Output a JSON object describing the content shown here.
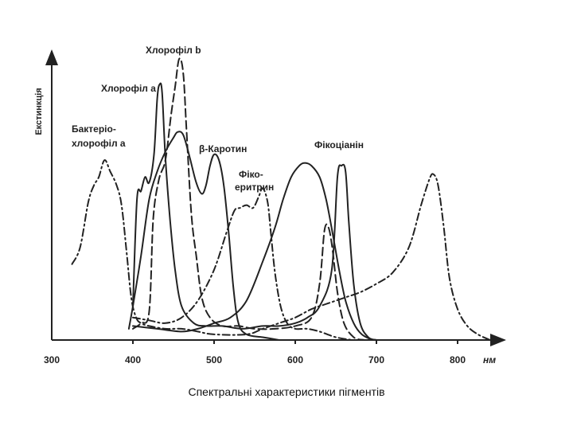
{
  "caption": "Спектральні характеристики пігментів",
  "chart_data": {
    "type": "line",
    "ylabel": "Екстинкція",
    "x_unit": "нм",
    "xlim": [
      300,
      850
    ],
    "ylim": [
      0,
      100
    ],
    "x_ticks": [
      300,
      400,
      500,
      600,
      700,
      800
    ],
    "grid": false,
    "legend": "none",
    "series": [
      {
        "name": "Бактеріохлорофіл a",
        "style": "dashdot",
        "points": [
          [
            325,
            27
          ],
          [
            335,
            33
          ],
          [
            345,
            49
          ],
          [
            352,
            55
          ],
          [
            358,
            58
          ],
          [
            365,
            64
          ],
          [
            372,
            60
          ],
          [
            380,
            55
          ],
          [
            386,
            48
          ],
          [
            392,
            32
          ],
          [
            398,
            15
          ],
          [
            404,
            8
          ],
          [
            410,
            6
          ],
          [
            420,
            5
          ],
          [
            440,
            4
          ],
          [
            460,
            4
          ],
          [
            480,
            3
          ],
          [
            500,
            2
          ],
          [
            540,
            2
          ],
          [
            560,
            4
          ],
          [
            580,
            6
          ],
          [
            600,
            8
          ],
          [
            620,
            11
          ],
          [
            640,
            13
          ],
          [
            660,
            15
          ],
          [
            680,
            17
          ],
          [
            700,
            20
          ],
          [
            720,
            24
          ],
          [
            740,
            33
          ],
          [
            755,
            48
          ],
          [
            765,
            57
          ],
          [
            770,
            59
          ],
          [
            776,
            55
          ],
          [
            783,
            40
          ],
          [
            790,
            22
          ],
          [
            800,
            11
          ],
          [
            812,
            5
          ],
          [
            825,
            2
          ],
          [
            840,
            0
          ]
        ]
      },
      {
        "name": "Хлорофіл a",
        "style": "solid",
        "points": [
          [
            400,
            12
          ],
          [
            405,
            50
          ],
          [
            410,
            53
          ],
          [
            415,
            58
          ],
          [
            420,
            56
          ],
          [
            426,
            66
          ],
          [
            430,
            86
          ],
          [
            433,
            91
          ],
          [
            436,
            88
          ],
          [
            440,
            65
          ],
          [
            446,
            42
          ],
          [
            452,
            25
          ],
          [
            460,
            12
          ],
          [
            475,
            6
          ],
          [
            490,
            5
          ],
          [
            510,
            5
          ],
          [
            535,
            4
          ],
          [
            560,
            5
          ],
          [
            580,
            5
          ],
          [
            600,
            6
          ],
          [
            615,
            8
          ],
          [
            630,
            12
          ],
          [
            645,
            25
          ],
          [
            652,
            58
          ],
          [
            657,
            62
          ],
          [
            662,
            60
          ],
          [
            666,
            42
          ],
          [
            672,
            20
          ],
          [
            680,
            6
          ],
          [
            690,
            1
          ],
          [
            700,
            0
          ]
        ]
      },
      {
        "name": "Хлорофіл b",
        "style": "dashed",
        "points": [
          [
            400,
            4
          ],
          [
            410,
            6
          ],
          [
            420,
            10
          ],
          [
            425,
            43
          ],
          [
            432,
            57
          ],
          [
            440,
            64
          ],
          [
            447,
            80
          ],
          [
            452,
            90
          ],
          [
            457,
            100
          ],
          [
            462,
            95
          ],
          [
            466,
            75
          ],
          [
            472,
            45
          ],
          [
            478,
            30
          ],
          [
            485,
            15
          ],
          [
            495,
            8
          ],
          [
            510,
            5
          ],
          [
            530,
            5
          ],
          [
            550,
            4
          ],
          [
            575,
            4
          ],
          [
            600,
            5
          ],
          [
            620,
            8
          ],
          [
            630,
            20
          ],
          [
            636,
            39
          ],
          [
            641,
            40
          ],
          [
            646,
            32
          ],
          [
            652,
            17
          ],
          [
            660,
            6
          ],
          [
            672,
            1
          ],
          [
            685,
            0
          ]
        ]
      },
      {
        "name": "β-Каротин",
        "style": "solid",
        "points": [
          [
            395,
            4
          ],
          [
            400,
            12
          ],
          [
            410,
            30
          ],
          [
            420,
            50
          ],
          [
            430,
            60
          ],
          [
            440,
            67
          ],
          [
            450,
            72
          ],
          [
            455,
            74
          ],
          [
            462,
            73
          ],
          [
            470,
            65
          ],
          [
            478,
            56
          ],
          [
            485,
            52
          ],
          [
            490,
            55
          ],
          [
            495,
            62
          ],
          [
            500,
            66
          ],
          [
            506,
            64
          ],
          [
            512,
            55
          ],
          [
            518,
            38
          ],
          [
            524,
            18
          ],
          [
            530,
            6
          ],
          [
            540,
            2
          ],
          [
            560,
            1
          ],
          [
            580,
            0
          ]
        ]
      },
      {
        "name": "Фікоеритрин",
        "style": "dashdot",
        "points": [
          [
            400,
            8
          ],
          [
            420,
            7
          ],
          [
            440,
            6
          ],
          [
            460,
            8
          ],
          [
            480,
            14
          ],
          [
            500,
            25
          ],
          [
            515,
            38
          ],
          [
            525,
            46
          ],
          [
            532,
            47
          ],
          [
            540,
            48
          ],
          [
            548,
            47
          ],
          [
            555,
            51
          ],
          [
            560,
            54
          ],
          [
            566,
            49
          ],
          [
            570,
            38
          ],
          [
            575,
            24
          ],
          [
            582,
            12
          ],
          [
            590,
            6
          ],
          [
            600,
            4
          ],
          [
            615,
            4
          ],
          [
            630,
            3
          ],
          [
            650,
            1
          ],
          [
            670,
            0
          ]
        ]
      },
      {
        "name": "Фікоціанін",
        "style": "solid",
        "points": [
          [
            400,
            5
          ],
          [
            430,
            4
          ],
          [
            460,
            3
          ],
          [
            480,
            4
          ],
          [
            500,
            6
          ],
          [
            520,
            8
          ],
          [
            540,
            14
          ],
          [
            560,
            28
          ],
          [
            575,
            40
          ],
          [
            585,
            50
          ],
          [
            595,
            58
          ],
          [
            605,
            62
          ],
          [
            612,
            63
          ],
          [
            620,
            62
          ],
          [
            630,
            58
          ],
          [
            638,
            50
          ],
          [
            646,
            38
          ],
          [
            654,
            25
          ],
          [
            662,
            14
          ],
          [
            672,
            6
          ],
          [
            682,
            2
          ],
          [
            695,
            0
          ]
        ]
      }
    ],
    "labels": [
      {
        "series": "Хлорофіл b",
        "text": "Хлорофіл b"
      },
      {
        "series": "Хлорофіл a",
        "text": "Хлорофіл a"
      },
      {
        "series": "Бактеріохлорофіл a",
        "text": "Бактеріо-"
      },
      {
        "series": "Бактеріохлорофіл a",
        "text": "хлорофіл a"
      },
      {
        "series": "β-Каротин",
        "text": "β-Каротин"
      },
      {
        "series": "Фікоеритрин",
        "text": "Фіко-"
      },
      {
        "series": "Фікоеритрин",
        "text": "еритрин"
      },
      {
        "series": "Фікоціанін",
        "text": "Фікоціанін"
      }
    ]
  }
}
